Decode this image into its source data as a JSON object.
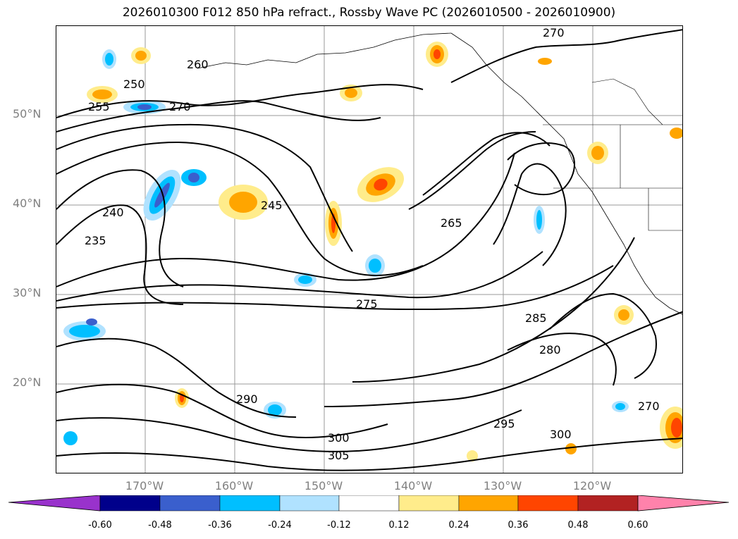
{
  "title": "2026010300 F012 850 hPa refract., Rossby Wave PC (2026010500 - 2026010900)",
  "lat_labels": [
    "50°N",
    "40°N",
    "30°N",
    "20°N"
  ],
  "lon_labels": [
    "170°W",
    "160°W",
    "150°W",
    "140°W",
    "130°W",
    "120°W"
  ],
  "contour_labels": [
    "250",
    "255",
    "260",
    "265",
    "270",
    "275",
    "280",
    "285",
    "290",
    "295",
    "300",
    "305",
    "245",
    "240",
    "235"
  ],
  "colorbar": {
    "ticks": [
      "-0.60",
      "-0.48",
      "-0.36",
      "-0.24",
      "-0.12",
      "0.12",
      "0.24",
      "0.36",
      "0.48",
      "0.60"
    ],
    "colors": [
      "#9932cc",
      "#00008b",
      "#3a5fcd",
      "#00bfff",
      "#b0e2ff",
      "#ffffff",
      "#ffec8b",
      "#ffa500",
      "#ff4500",
      "#b22222",
      "#ff82ab"
    ]
  },
  "field_colors": {
    "light_blue": "#b0e2ff",
    "blue": "#00bfff",
    "mid_blue": "#3a5fcd",
    "yellow": "#ffec8b",
    "orange": "#ffa500",
    "red": "#ff4500"
  }
}
